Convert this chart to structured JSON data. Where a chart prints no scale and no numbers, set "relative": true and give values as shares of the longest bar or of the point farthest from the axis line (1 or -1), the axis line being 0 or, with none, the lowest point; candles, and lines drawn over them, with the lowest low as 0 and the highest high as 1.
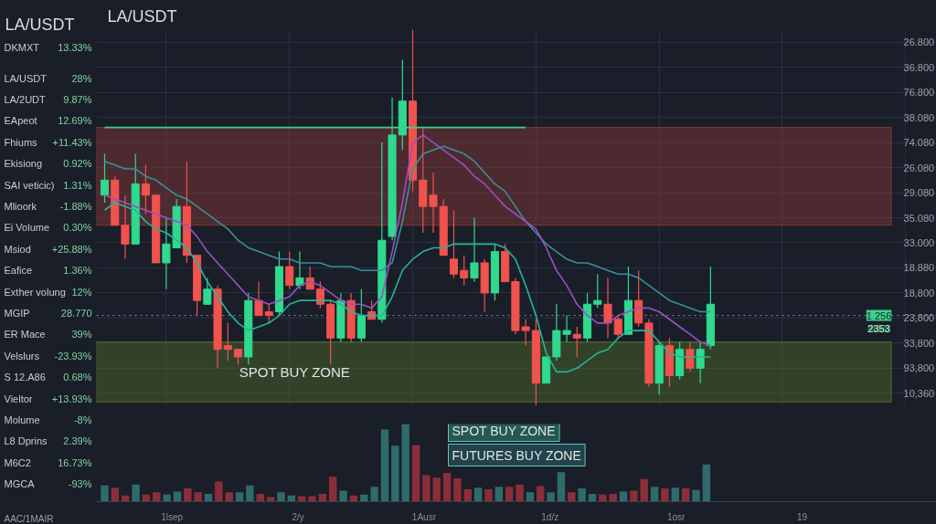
{
  "chart_data": [
    {
      "type": "candlestick",
      "title": "LA/USDT",
      "relative": true,
      "grid": true,
      "categories": [
        null,
        null,
        null,
        null,
        null,
        null,
        null,
        null,
        null,
        null,
        null,
        null,
        null,
        null,
        null,
        null,
        null,
        null,
        null,
        null,
        null,
        null,
        null,
        null,
        null,
        null,
        null,
        null,
        null,
        null,
        null,
        null,
        null,
        null,
        null,
        null,
        null,
        null,
        null,
        null,
        null,
        null,
        null,
        null,
        null,
        null,
        null,
        null,
        null,
        null,
        null,
        null,
        null,
        null,
        null,
        null,
        null,
        null,
        null,
        null
      ],
      "ohlc": [
        [
          0.56,
          0.67,
          0.54,
          0.6
        ],
        [
          0.6,
          0.61,
          0.48,
          0.48
        ],
        [
          0.48,
          0.56,
          0.39,
          0.43
        ],
        [
          0.43,
          0.67,
          0.43,
          0.59
        ],
        [
          0.59,
          0.64,
          0.51,
          0.56
        ],
        [
          0.56,
          0.56,
          0.38,
          0.38
        ],
        [
          0.38,
          0.5,
          0.31,
          0.43
        ],
        [
          0.42,
          0.55,
          0.42,
          0.53
        ],
        [
          0.53,
          0.65,
          0.38,
          0.4
        ],
        [
          0.4,
          0.4,
          0.24,
          0.28
        ],
        [
          0.27,
          0.34,
          0.27,
          0.31
        ],
        [
          0.31,
          0.32,
          0.1,
          0.15
        ],
        [
          0.16,
          0.22,
          0.12,
          0.15
        ],
        [
          0.15,
          0.15,
          0.11,
          0.13
        ],
        [
          0.13,
          0.3,
          0.11,
          0.28
        ],
        [
          0.28,
          0.33,
          0.24,
          0.24
        ],
        [
          0.25,
          0.27,
          0.22,
          0.24
        ],
        [
          0.25,
          0.41,
          0.24,
          0.37
        ],
        [
          0.37,
          0.41,
          0.31,
          0.32
        ],
        [
          0.32,
          0.41,
          0.31,
          0.34
        ],
        [
          0.34,
          0.37,
          0.31,
          0.31
        ],
        [
          0.31,
          0.33,
          0.26,
          0.27
        ],
        [
          0.27,
          0.28,
          0.11,
          0.18
        ],
        [
          0.18,
          0.3,
          0.17,
          0.28
        ],
        [
          0.28,
          0.3,
          0.17,
          0.18
        ],
        [
          0.18,
          0.31,
          0.17,
          0.24
        ],
        [
          0.25,
          0.28,
          0.23,
          0.23
        ],
        [
          0.23,
          0.7,
          0.22,
          0.44
        ],
        [
          0.45,
          0.82,
          0.44,
          0.72
        ],
        [
          0.72,
          0.92,
          0.68,
          0.81
        ],
        [
          0.81,
          1.0,
          0.57,
          0.6
        ],
        [
          0.6,
          0.74,
          0.46,
          0.53
        ],
        [
          0.56,
          0.62,
          0.46,
          0.53
        ],
        [
          0.53,
          0.55,
          0.4,
          0.4
        ],
        [
          0.39,
          0.52,
          0.34,
          0.35
        ],
        [
          0.36,
          0.4,
          0.32,
          0.34
        ],
        [
          0.34,
          0.5,
          0.33,
          0.38
        ],
        [
          0.38,
          0.39,
          0.25,
          0.3
        ],
        [
          0.3,
          0.43,
          0.28,
          0.41
        ],
        [
          0.41,
          0.43,
          0.33,
          0.33
        ],
        [
          0.33,
          0.34,
          0.19,
          0.2
        ],
        [
          0.21,
          0.23,
          0.16,
          0.2
        ],
        [
          0.2,
          0.23,
          0,
          0.06
        ],
        [
          0.06,
          0.13,
          0.06,
          0.13
        ],
        [
          0.13,
          0.27,
          0.12,
          0.2
        ],
        [
          0.19,
          0.24,
          0.17,
          0.2
        ],
        [
          0.19,
          0.21,
          0.13,
          0.18
        ],
        [
          0.18,
          0.3,
          0.17,
          0.27
        ],
        [
          0.27,
          0.35,
          0.26,
          0.28
        ],
        [
          0.27,
          0.34,
          0.18,
          0.22
        ],
        [
          0.23,
          0.24,
          0.18,
          0.19
        ],
        [
          0.19,
          0.37,
          0.19,
          0.28
        ],
        [
          0.28,
          0.36,
          0.21,
          0.22
        ],
        [
          0.22,
          0.23,
          0.05,
          0.06
        ],
        [
          0.06,
          0.17,
          0.03,
          0.16
        ],
        [
          0.16,
          0.18,
          0.05,
          0.08
        ],
        [
          0.08,
          0.17,
          0.07,
          0.15
        ],
        [
          0.15,
          0.17,
          0.09,
          0.1
        ],
        [
          0.1,
          0.17,
          0.06,
          0.15
        ],
        [
          0.16,
          0.37,
          0.15,
          0.27
        ]
      ],
      "colors": [
        "#2fd98f",
        "#f0524d",
        "#f0524d",
        "#2fd98f",
        "#f0524d",
        "#f0524d",
        "#2fd98f",
        "#2fd98f",
        "#f0524d",
        "#f0524d",
        "#2fd98f",
        "#f0524d",
        "#f0524d",
        "#f0524d",
        "#2fd98f",
        "#f0524d",
        "#f0524d",
        "#2fd98f",
        "#f0524d",
        "#2fd98f",
        "#f0524d",
        "#f0524d",
        "#f0524d",
        "#2fd98f",
        "#f0524d",
        "#2fd98f",
        "#f0524d",
        "#2fd98f",
        "#2fd98f",
        "#2fd98f",
        "#f0524d",
        "#f0524d",
        "#f0524d",
        "#f0524d",
        "#f0524d",
        "#f0524d",
        "#2fd98f",
        "#f0524d",
        "#2fd98f",
        "#f0524d",
        "#f0524d",
        "#f0524d",
        "#f0524d",
        "#2fd98f",
        "#2fd98f",
        "#2fd98f",
        "#f0524d",
        "#2fd98f",
        "#2fd98f",
        "#f0524d",
        "#f0524d",
        "#2fd98f",
        "#f0524d",
        "#f0524d",
        "#2fd98f",
        "#f0524d",
        "#2fd98f",
        "#f0524d",
        "#2fd98f",
        "#2fd98f"
      ],
      "series": [
        {
          "type": "line",
          "color": "#3a8f9a",
          "values": [
            0.65,
            0.64,
            0.63,
            0.63,
            0.61,
            0.6,
            0.58,
            0.56,
            0.55,
            0.53,
            0.51,
            0.49,
            0.47,
            0.44,
            0.42,
            0.41,
            0.4,
            0.39,
            0.39,
            0.38,
            0.38,
            0.38,
            0.37,
            0.37,
            0.37,
            0.36,
            0.36,
            0.36,
            0.38,
            0.49,
            0.63,
            0.67,
            0.68,
            0.69,
            0.68,
            0.67,
            0.65,
            0.62,
            0.59,
            0.57,
            0.53,
            0.49,
            0.46,
            0.43,
            0.41,
            0.39,
            0.38,
            0.38,
            0.37,
            0.36,
            0.35,
            0.35,
            0.34,
            0.32,
            0.3,
            0.28,
            0.27,
            0.26,
            0.25,
            0.25
          ]
        },
        {
          "type": "line",
          "color": "#9b4fc4",
          "values": [
            0.56,
            0.55,
            0.54,
            0.53,
            0.52,
            0.51,
            0.5,
            0.49,
            0.48,
            0.45,
            0.41,
            0.38,
            0.35,
            0.32,
            0.29,
            0.28,
            0.27,
            0.28,
            0.29,
            0.32,
            0.33,
            0.32,
            0.3,
            0.28,
            0.27,
            0.27,
            0.26,
            0.29,
            0.41,
            0.54,
            0.7,
            0.72,
            0.7,
            0.68,
            0.66,
            0.64,
            0.61,
            0.59,
            0.56,
            0.53,
            0.51,
            0.49,
            0.47,
            0.42,
            0.36,
            0.32,
            0.27,
            0.24,
            0.22,
            0.22,
            0.24,
            0.25,
            0.26,
            0.26,
            0.25,
            0.23,
            0.21,
            0.19,
            0.17,
            0.16
          ]
        },
        {
          "type": "line",
          "color": "#25b59a",
          "values": [
            0.52,
            0.54,
            0.53,
            0.52,
            0.49,
            0.47,
            0.46,
            0.44,
            0.42,
            0.38,
            0.33,
            0.29,
            0.25,
            0.22,
            0.2,
            0.21,
            0.22,
            0.24,
            0.27,
            0.28,
            0.28,
            0.28,
            0.28,
            0.27,
            0.25,
            0.24,
            0.24,
            0.24,
            0.29,
            0.36,
            0.39,
            0.41,
            0.42,
            0.42,
            0.43,
            0.43,
            0.43,
            0.43,
            0.43,
            0.42,
            0.39,
            0.32,
            0.24,
            0.14,
            0.09,
            0.09,
            0.1,
            0.12,
            0.14,
            0.15,
            0.18,
            0.2,
            0.2,
            0.2,
            0.17,
            0.14,
            0.13,
            0.13,
            0.13,
            0.13
          ]
        },
        {
          "type": "line",
          "color": "#3ecf8e",
          "values": [
            0.74,
            0.74,
            0.74,
            0.74,
            0.74,
            0.74,
            0.74,
            0.74,
            0.74,
            0.74,
            0.74,
            0.74,
            0.74,
            0.74,
            0.74,
            0.74,
            0.74,
            0.74,
            0.74,
            0.74,
            0.74,
            0.74,
            0.74,
            0.74,
            0.74,
            0.74,
            0.74,
            0.74,
            0.74,
            0.74,
            0.74,
            0.74,
            0.74,
            0.74,
            0.74,
            0.74,
            0.74,
            0.74,
            0.74,
            0.74,
            0.74,
            0.74,
            null,
            null,
            null,
            null,
            null,
            null,
            null,
            null,
            null,
            null,
            null,
            null,
            null,
            null,
            null,
            null,
            null,
            null
          ]
        }
      ],
      "ref_lines": [
        {
          "axis": "y",
          "value": 0.24,
          "color": "#8a9099",
          "line_style": "dotted"
        }
      ],
      "bands": [
        {
          "axis": "y",
          "from": 0.48,
          "to": 0.74,
          "color": "#8b3a3a"
        },
        {
          "axis": "y",
          "from": 0.01,
          "to": 0.17,
          "color": "#4f6e2a",
          "label": "SPOT BUY ZONE"
        }
      ],
      "annotations": [
        "26.800",
        "36.800",
        "76.800",
        "38.080",
        "74.080",
        "26.080",
        "29.080",
        "35.080",
        "33.000",
        "18.880",
        "18,800",
        "23,800",
        "33,800",
        "93,800",
        "10,360",
        "1 256",
        "2353",
        "SPOT BUY ZONE",
        "FUTURES BUY ZONE"
      ]
    },
    {
      "type": "bar",
      "relative": true,
      "categories": [
        null,
        null,
        null,
        null,
        null,
        null,
        null,
        null,
        null,
        null,
        null,
        null,
        null,
        null,
        null,
        null,
        null,
        null,
        null,
        null,
        null,
        null,
        null,
        null,
        null,
        null,
        null,
        null,
        null,
        null,
        null,
        null,
        null,
        null,
        null,
        null,
        null,
        null,
        null,
        null,
        null,
        null,
        null,
        null,
        null,
        null,
        null,
        null,
        null,
        null,
        null,
        null,
        null,
        null,
        null,
        null,
        null,
        null,
        null
      ],
      "values": [
        0.21,
        0.18,
        0.08,
        0.22,
        0.09,
        0.12,
        0.09,
        0.13,
        0.17,
        0.12,
        0.1,
        0.26,
        0.12,
        0.12,
        0.21,
        0.1,
        0.06,
        0.12,
        0.08,
        0.07,
        0.07,
        0.1,
        0.32,
        0.14,
        0.08,
        0.09,
        0.19,
        0.93,
        0.72,
        1,
        0.73,
        0.34,
        0.31,
        0.37,
        0.3,
        0.16,
        0.18,
        0.16,
        0.19,
        0.19,
        0.22,
        0.12,
        0.2,
        0.12,
        0.38,
        0.12,
        0.17,
        0.1,
        0.09,
        0.1,
        0.13,
        0.14,
        0.29,
        0.19,
        0.17,
        0.18,
        0.17,
        0.15,
        0.48
      ],
      "colors": [
        "#2f6b6b",
        "#8b2e38",
        "#8b2e38",
        "#2f6b6b",
        "#8b2e38",
        "#8b2e38",
        "#2f6b6b",
        "#2f6b6b",
        "#8b2e38",
        "#8b2e38",
        "#2f6b6b",
        "#8b2e38",
        "#8b2e38",
        "#2f6b6b",
        "#2f6b6b",
        "#8b2e38",
        "#8b2e38",
        "#2f6b6b",
        "#2f6b6b",
        "#8b2e38",
        "#8b2e38",
        "#8b2e38",
        "#8b2e38",
        "#2f6b6b",
        "#8b2e38",
        "#2f6b6b",
        "#2f6b6b",
        "#2f6b6b",
        "#2f6b6b",
        "#2f6b6b",
        "#8b2e38",
        "#8b2e38",
        "#8b2e38",
        "#8b2e38",
        "#8b2e38",
        "#8b2e38",
        "#2f6b6b",
        "#8b2e38",
        "#2f6b6b",
        "#8b2e38",
        "#8b2e38",
        "#2f6b6b",
        "#8b2e38",
        "#2f6b6b",
        "#2f6b6b",
        "#8b2e38",
        "#2f6b6b",
        "#2f6b6b",
        "#8b2e38",
        "#8b2e38",
        "#2f6b6b",
        "#8b2e38",
        "#8b2e38",
        "#2f6b6b",
        "#8b2e38",
        "#2f6b6b",
        "#8b2e38",
        "#2f6b6b",
        "#2f6b6b"
      ],
      "annotations": [
        "1lsep",
        "2/y",
        "1Ausr",
        "1d/z",
        "1osr",
        "19"
      ]
    },
    {
      "type": "other",
      "title": "LA/USDT",
      "annotations": [
        "DKMXT",
        "13.33%",
        "LA/USDT",
        "28%",
        "LA/2UDT",
        "9.87%",
        "EApeot",
        "12.69%",
        "Fhiums",
        "+11.43%",
        "Ekisiong",
        "0.92%",
        "SAI veticic)",
        "1.31%",
        "Mlioork",
        "-1.88%",
        "Ei Volume",
        "0.30%",
        "Msiod",
        "+25.88%",
        "Eafice",
        "1.36%",
        "Exther volung",
        "12%",
        "MGIP",
        "28.770",
        "ER Mace",
        "39%",
        "Velslurs",
        "-23.93%",
        "S 12.A86",
        "0.68%",
        "Vieltor",
        "+13.93%",
        "Molume",
        "-8%",
        "L8 Dprins",
        "2.39%",
        "M6C2",
        "16.73%",
        "MGCA",
        "-93%",
        "AAC/1MAIR"
      ]
    }
  ]
}
